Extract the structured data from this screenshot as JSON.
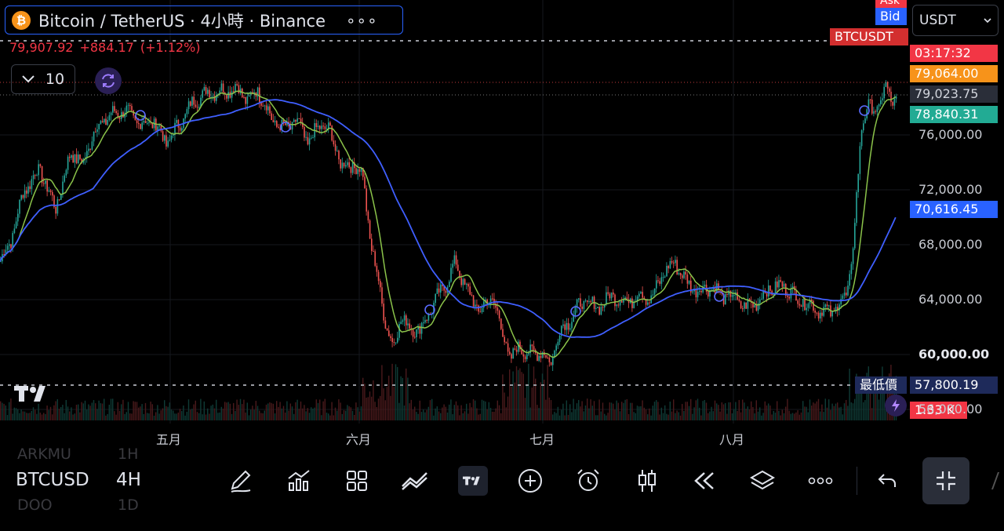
{
  "header": {
    "coin_symbol": "₿",
    "title": "Bitcoin / TetherUS · 4小時 · Binance",
    "more": "∘∘∘"
  },
  "price_line": {
    "price": "79,907.92",
    "change": "+884.17",
    "change_pct": "(+1.12%)"
  },
  "indicators": {
    "count": "10"
  },
  "currency": {
    "selected": "USDT"
  },
  "price_scale": {
    "ask_label": "Ask",
    "bid_label": "Bid",
    "symbol_label": "BTCUSDT",
    "countdown": "03:17:32",
    "last_price": "79,064.00",
    "current_price": "79,023.75",
    "green_level": "78,840.31",
    "ma_value": "70,616.45",
    "low_label": "最低價",
    "low_value": "57,800.19",
    "volume_value": "1.33 K",
    "ticks": [
      "76,000.00",
      "72,000.00",
      "68,000.00",
      "64,000.00",
      "60,000.00",
      "56,000.00"
    ],
    "tick_values": [
      76000,
      72000,
      68000,
      64000,
      60000,
      56000
    ]
  },
  "time_axis": {
    "months": [
      "五月",
      "六月",
      "七月",
      "八月"
    ]
  },
  "bottom_bar": {
    "symbol": "BTCUSD",
    "timeframe": "4H",
    "ghost_above_symbol": "ARKMU",
    "ghost_above_tf": "1H",
    "ghost_below_symbol": "DOO",
    "ghost_below_tf": "1D"
  },
  "colors": {
    "up": "#26a69a",
    "down": "#ef5350",
    "ma_fast": "#8bc34a",
    "ma_slow": "#3f5fff",
    "accent": "#2962ff",
    "ask": "#f23645",
    "countdown": "#f23645",
    "last": "#f7931a",
    "current": "#2a2e39",
    "green": "#22ab94",
    "ma_tag": "#2962ff",
    "low_tag": "#1e2a5a",
    "volume_tag": "#f23645"
  },
  "chart_data": {
    "type": "candlestick",
    "y_range": [
      55000,
      80500
    ],
    "anchors": [
      [
        0,
        66800
      ],
      [
        14,
        68500
      ],
      [
        30,
        72000
      ],
      [
        50,
        73500
      ],
      [
        70,
        70600
      ],
      [
        90,
        74800
      ],
      [
        105,
        73800
      ],
      [
        118,
        76200
      ],
      [
        138,
        77400
      ],
      [
        158,
        77800
      ],
      [
        178,
        76800
      ],
      [
        195,
        77000
      ],
      [
        212,
        75400
      ],
      [
        230,
        77000
      ],
      [
        248,
        78600
      ],
      [
        265,
        79100
      ],
      [
        285,
        79200
      ],
      [
        300,
        79500
      ],
      [
        315,
        78500
      ],
      [
        328,
        79300
      ],
      [
        345,
        77200
      ],
      [
        360,
        76400
      ],
      [
        378,
        77000
      ],
      [
        392,
        75400
      ],
      [
        408,
        76800
      ],
      [
        420,
        76200
      ],
      [
        435,
        73700
      ],
      [
        450,
        73900
      ],
      [
        462,
        73000
      ],
      [
        472,
        68000
      ],
      [
        482,
        65200
      ],
      [
        492,
        62000
      ],
      [
        500,
        60500
      ],
      [
        510,
        62700
      ],
      [
        520,
        62000
      ],
      [
        535,
        61800
      ],
      [
        552,
        63700
      ],
      [
        568,
        65200
      ],
      [
        580,
        66700
      ],
      [
        595,
        64600
      ],
      [
        610,
        63200
      ],
      [
        628,
        64200
      ],
      [
        640,
        61500
      ],
      [
        650,
        59700
      ],
      [
        662,
        60600
      ],
      [
        675,
        60000
      ],
      [
        690,
        60300
      ],
      [
        700,
        59200
      ],
      [
        712,
        61600
      ],
      [
        725,
        62500
      ],
      [
        742,
        63900
      ],
      [
        760,
        63400
      ],
      [
        780,
        64300
      ],
      [
        800,
        63800
      ],
      [
        815,
        64500
      ],
      [
        830,
        64000
      ],
      [
        845,
        66000
      ],
      [
        860,
        66700
      ],
      [
        875,
        65200
      ],
      [
        890,
        64600
      ],
      [
        905,
        65000
      ],
      [
        920,
        64300
      ],
      [
        935,
        64200
      ],
      [
        950,
        63400
      ],
      [
        965,
        63900
      ],
      [
        980,
        64800
      ],
      [
        1000,
        65000
      ],
      [
        1015,
        64100
      ],
      [
        1030,
        63700
      ],
      [
        1045,
        63200
      ],
      [
        1060,
        63100
      ],
      [
        1070,
        63800
      ],
      [
        1078,
        64400
      ],
      [
        1085,
        66500
      ],
      [
        1092,
        72000
      ],
      [
        1098,
        76800
      ],
      [
        1105,
        78300
      ],
      [
        1112,
        77600
      ],
      [
        1120,
        78100
      ],
      [
        1127,
        79700
      ],
      [
        1135,
        78300
      ],
      [
        1144,
        79000
      ]
    ]
  }
}
